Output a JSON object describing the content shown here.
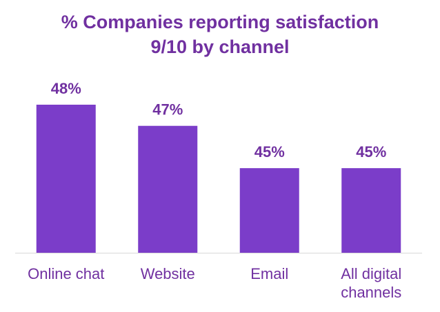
{
  "chart_data": {
    "type": "bar",
    "title_line1": "% Companies reporting satisfaction",
    "title_line2": "9/10 by channel",
    "categories": [
      [
        "Online chat"
      ],
      [
        "Website"
      ],
      [
        "Email"
      ],
      [
        "All digital",
        "channels"
      ]
    ],
    "values": [
      48,
      47,
      45,
      45
    ],
    "value_labels": [
      "48%",
      "47%",
      "45%",
      "45%"
    ],
    "ylim": [
      41,
      48
    ],
    "grid": false,
    "legend": "none",
    "colors": {
      "bar": "#7B3DC9",
      "text": "#7030A0",
      "axis": "#D9D9D9"
    }
  }
}
